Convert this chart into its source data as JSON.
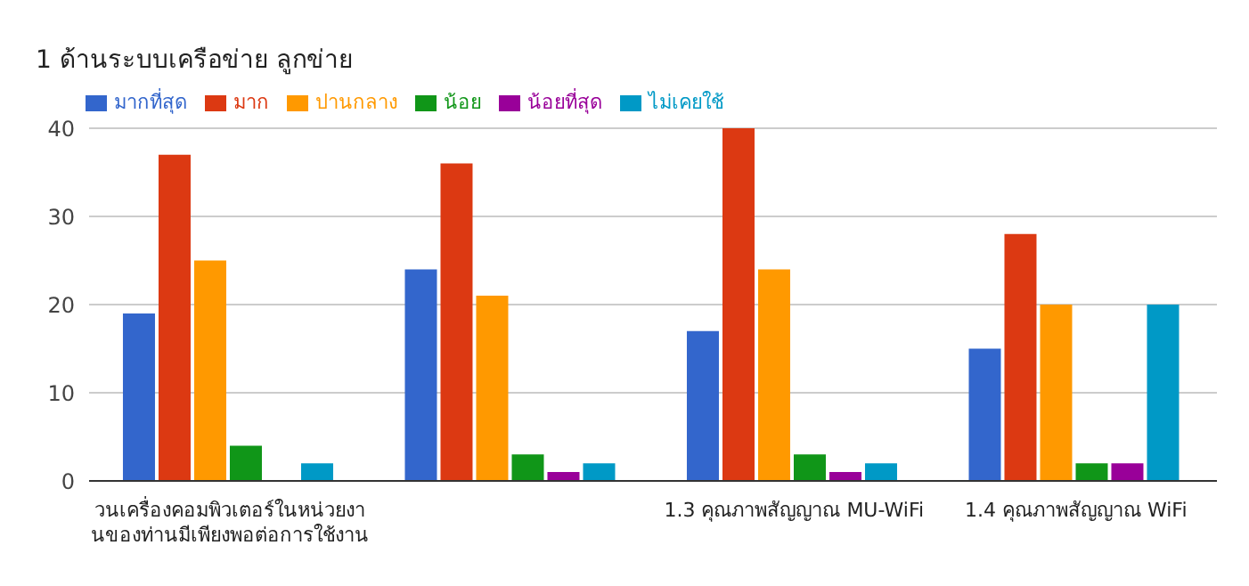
{
  "chart_data": {
    "type": "bar",
    "title": "1 ด้านระบบเครือข่าย ลูกข่าย",
    "categories": [
      "วนเครื่องคอมพิวเตอร์ในหน่วยงานของท่านมีเพียงพอต่อการใช้งาน",
      null,
      "1.3 คุณภาพสัญญาณ MU-WiFi",
      "1.4 คุณภาพสัญญาณ WiFi"
    ],
    "series": [
      {
        "name": "มากที่สุด",
        "color": "#3366cc",
        "values": [
          19,
          24,
          17,
          15
        ]
      },
      {
        "name": "มาก",
        "color": "#dc3912",
        "values": [
          37,
          36,
          40,
          28
        ]
      },
      {
        "name": "ปานกลาง",
        "color": "#ff9900",
        "values": [
          25,
          21,
          24,
          20
        ]
      },
      {
        "name": "น้อย",
        "color": "#109618",
        "values": [
          4,
          3,
          3,
          2
        ]
      },
      {
        "name": "น้อยที่สุด",
        "color": "#990099",
        "values": [
          0,
          1,
          1,
          2
        ]
      },
      {
        "name": "ไม่เคยใช้",
        "color": "#0099c6",
        "values": [
          2,
          2,
          2,
          20
        ]
      }
    ],
    "ylim": [
      0,
      40
    ],
    "yticks": [
      0,
      10,
      20,
      30,
      40
    ],
    "grid": "y",
    "legend": "top left"
  }
}
